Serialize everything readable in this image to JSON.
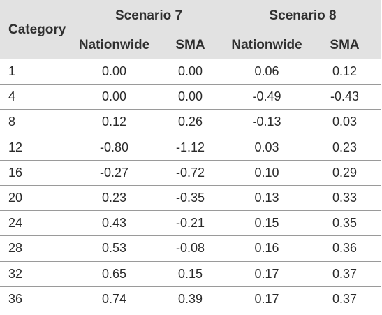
{
  "table": {
    "category_header": "Category",
    "groups": [
      "Scenario 7",
      "Scenario 8"
    ],
    "subheaders": [
      "Nationwide",
      "SMA",
      "Nationwide",
      "SMA"
    ],
    "rows": [
      [
        "1",
        "0.00",
        "0.00",
        "0.06",
        "0.12"
      ],
      [
        "4",
        "0.00",
        "0.00",
        "-0.49",
        "-0.43"
      ],
      [
        "8",
        "0.12",
        "0.26",
        "-0.13",
        "0.03"
      ],
      [
        "12",
        "-0.80",
        "-1.12",
        "0.03",
        "0.23"
      ],
      [
        "16",
        "-0.27",
        "-0.72",
        "0.10",
        "0.29"
      ],
      [
        "20",
        "0.23",
        "-0.35",
        "0.13",
        "0.33"
      ],
      [
        "24",
        "0.43",
        "-0.21",
        "0.15",
        "0.35"
      ],
      [
        "28",
        "0.53",
        "-0.08",
        "0.16",
        "0.36"
      ],
      [
        "32",
        "0.65",
        "0.15",
        "0.17",
        "0.37"
      ],
      [
        "36",
        "0.74",
        "0.39",
        "0.17",
        "0.37"
      ]
    ]
  }
}
